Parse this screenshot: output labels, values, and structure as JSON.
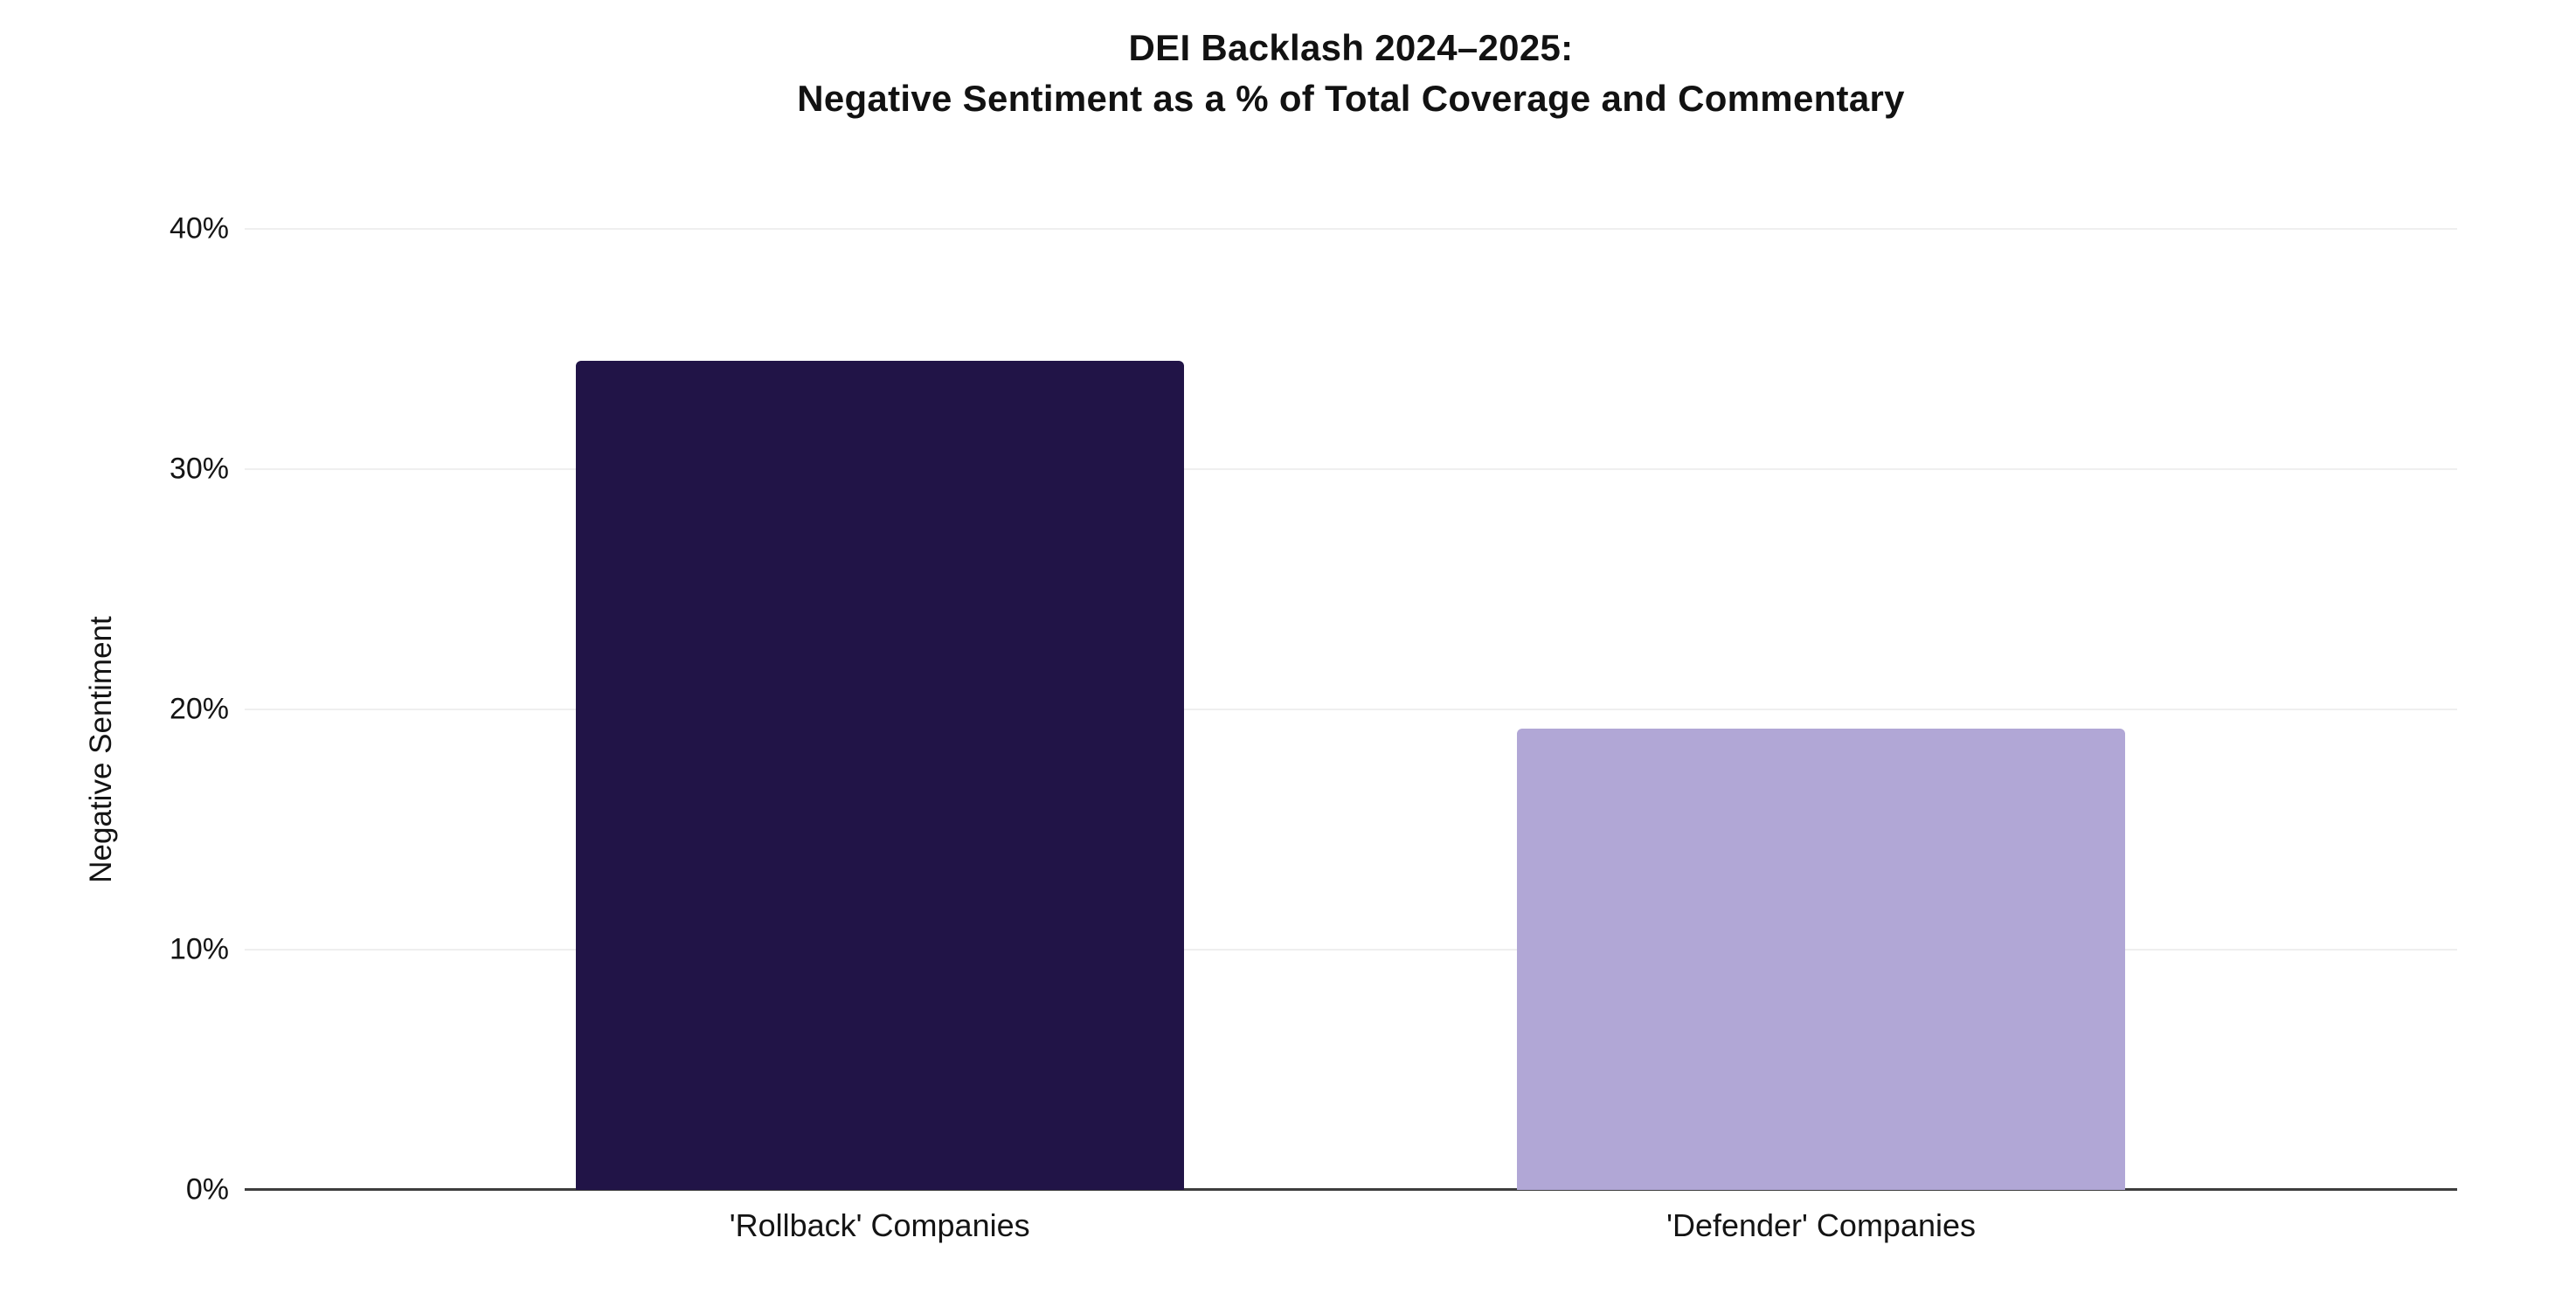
{
  "title": {
    "line1": "DEI Backlash 2024–2025:",
    "line2": "Negative Sentiment as a % of Total Coverage and Commentary"
  },
  "y_axis": {
    "label": "Negative Sentiment",
    "ticks": [
      "40%",
      "30%",
      "20%",
      "10%",
      "0%"
    ]
  },
  "x_axis": {
    "categories": [
      "'Rollback' Companies",
      "'Defender' Companies"
    ]
  },
  "chart_data": {
    "type": "bar",
    "title": "DEI Backlash 2024–2025: Negative Sentiment as a % of Total Coverage and Commentary",
    "categories": [
      "'Rollback' Companies",
      "'Defender' Companies"
    ],
    "values": [
      34.5,
      19.2
    ],
    "unit": "%",
    "xlabel": "",
    "ylabel": "Negative Sentiment",
    "ylim": [
      0,
      40
    ],
    "yticks": [
      0,
      10,
      20,
      30,
      40
    ],
    "ytick_format": "percent",
    "grid": true,
    "legend": false,
    "bar_colors": [
      "#211447",
      "#B1A7D6"
    ]
  },
  "colors": {
    "background": "#ffffff",
    "gridline": "#efefef",
    "axis_line": "#3d3d3d",
    "text": "#141414"
  }
}
